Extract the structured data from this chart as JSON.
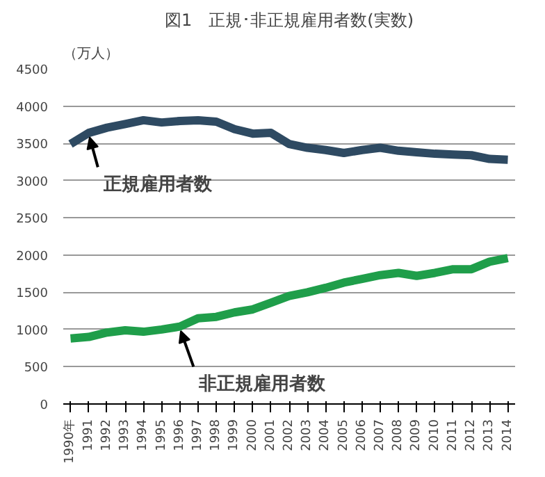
{
  "chart_data": {
    "type": "line",
    "title": "図1　正規･非正規雇用者数(実数)",
    "ylabel": "（万人）",
    "categories": [
      "1990年",
      "1991",
      "1992",
      "1993",
      "1994",
      "1995",
      "1996",
      "1997",
      "1998",
      "1999",
      "2000",
      "2001",
      "2002",
      "2003",
      "2004",
      "2005",
      "2006",
      "2007",
      "2008",
      "2009",
      "2010",
      "2011",
      "2012",
      "2013",
      "2014"
    ],
    "series": [
      {
        "color": "#2e4a62",
        "values": [
          3490,
          3640,
          3710,
          3760,
          3810,
          3780,
          3800,
          3810,
          3790,
          3690,
          3630,
          3640,
          3490,
          3440,
          3410,
          3370,
          3410,
          3440,
          3400,
          3380,
          3360,
          3350,
          3340,
          3290,
          3280
        ]
      },
      {
        "color": "#1f9e4a",
        "values": [
          880,
          900,
          960,
          990,
          970,
          1000,
          1040,
          1150,
          1170,
          1230,
          1270,
          1360,
          1450,
          1500,
          1560,
          1630,
          1680,
          1730,
          1760,
          1720,
          1760,
          1810,
          1810,
          1910,
          1960
        ]
      }
    ],
    "annotations": [
      {
        "text": "正規雇用者数",
        "x": "1991",
        "y": 3640
      },
      {
        "text": "非正規雇用者数",
        "x": "1996",
        "y": 1040
      }
    ],
    "ylim": [
      0,
      4500
    ],
    "yticks": [
      0,
      500,
      1000,
      1500,
      2000,
      2500,
      3000,
      3500,
      4000,
      4500
    ],
    "grid": "y",
    "marker": "none",
    "line_style": "solid"
  }
}
